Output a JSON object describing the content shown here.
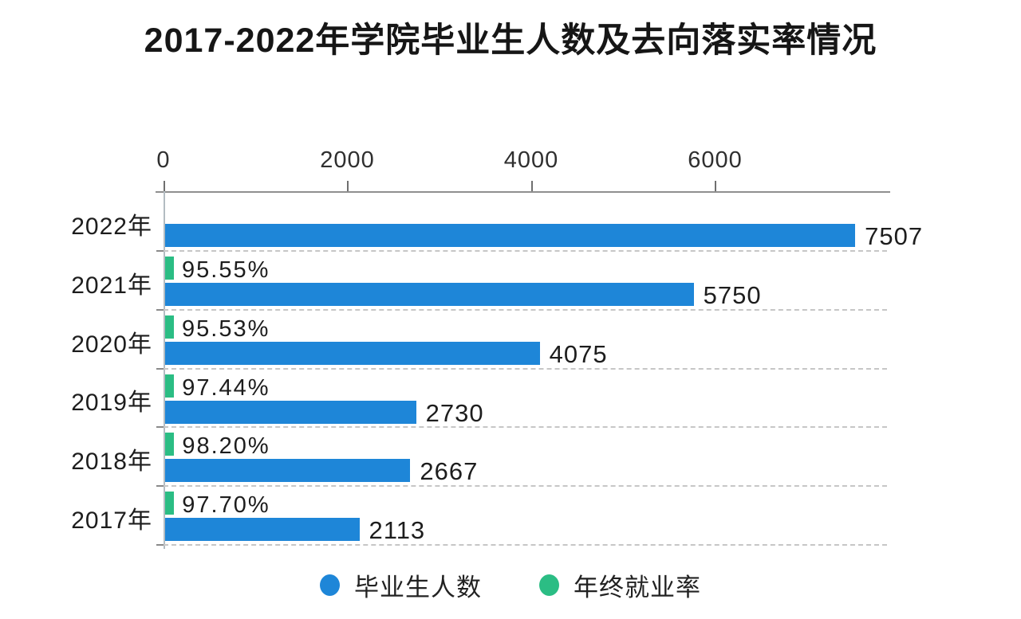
{
  "page": {
    "background": "#ffffff"
  },
  "chart_data": {
    "type": "bar",
    "orientation": "horizontal",
    "title": "2017-2022年学院毕业生人数及去向落实率情况",
    "categories": [
      "2022年",
      "2021年",
      "2020年",
      "2019年",
      "2018年",
      "2017年"
    ],
    "series": [
      {
        "name": "毕业生人数",
        "color": "#1e86d8",
        "values": [
          7507,
          5750,
          4075,
          2730,
          2667,
          2113
        ],
        "labels": [
          "7507",
          "5750",
          "4075",
          "2730",
          "2667",
          "2113"
        ]
      },
      {
        "name": "年终就业率",
        "color": "#2bbd84",
        "values": [
          null,
          95.55,
          95.53,
          97.44,
          98.2,
          97.7
        ],
        "labels": [
          "",
          "95.55%",
          "95.53%",
          "97.44%",
          "98.20%",
          "97.70%"
        ]
      }
    ],
    "x_ticks": [
      "0",
      "2000",
      "4000",
      "6000"
    ],
    "x_tick_values": [
      0,
      2000,
      4000,
      6000
    ],
    "xlim": [
      0,
      7870
    ],
    "grid": "dashed-row-boundaries",
    "legend": {
      "position": "bottom",
      "items": [
        {
          "label": "毕业生人数",
          "color": "#1e86d8"
        },
        {
          "label": "年终就业率",
          "color": "#2bbd84"
        }
      ]
    }
  }
}
